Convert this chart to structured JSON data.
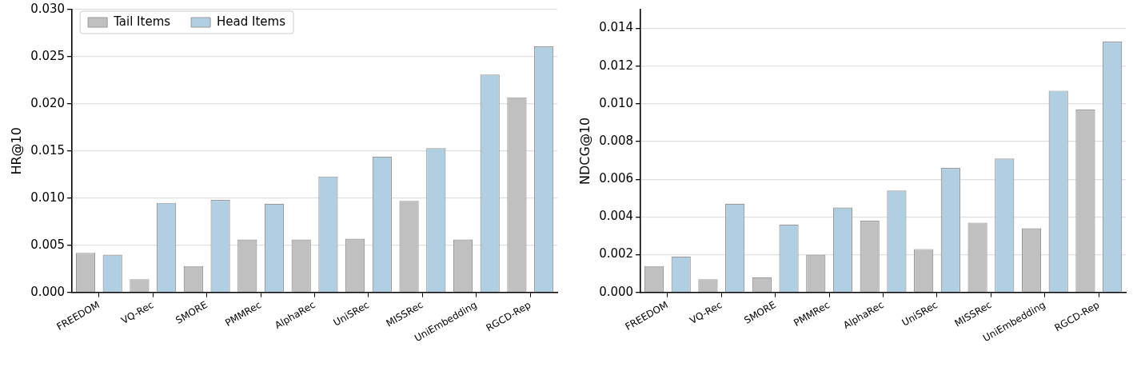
{
  "chart_data": [
    {
      "type": "bar",
      "ylabel": "HR@10",
      "categories": [
        "FREEDOM",
        "VQ-Rec",
        "SMORE",
        "PMMRec",
        "AlphaRec",
        "UniSRec",
        "MISSRec",
        "UniEmbedding",
        "RGCD-Rep"
      ],
      "series": [
        {
          "name": "Tail Items",
          "color": "#c0c0c0",
          "values": [
            0.0042,
            0.0014,
            0.0028,
            0.0056,
            0.0056,
            0.0057,
            0.0097,
            0.0056,
            0.0207
          ]
        },
        {
          "name": "Head Items",
          "color": "#b0cfe2",
          "values": [
            0.004,
            0.0095,
            0.0098,
            0.0094,
            0.0123,
            0.0144,
            0.0153,
            0.0231,
            0.0261
          ]
        }
      ],
      "ylim": [
        0,
        0.03
      ],
      "yticks": [
        {
          "value": 0,
          "label": "0.000"
        },
        {
          "value": 0.005,
          "label": "0.005"
        },
        {
          "value": 0.01,
          "label": "0.010"
        },
        {
          "value": 0.015,
          "label": "0.015"
        },
        {
          "value": 0.02,
          "label": "0.020"
        },
        {
          "value": 0.025,
          "label": "0.025"
        },
        {
          "value": 0.03,
          "label": "0.030"
        }
      ],
      "grid": "y",
      "legend": "top left"
    },
    {
      "type": "bar",
      "ylabel": "NDCG@10",
      "categories": [
        "FREEDOM",
        "VQ-Rec",
        "SMORE",
        "PMMRec",
        "AlphaRec",
        "UniSRec",
        "MISSRec",
        "UniEmbedding",
        "RGCD-Rep"
      ],
      "series": [
        {
          "color": "#c0c0c0",
          "values": [
            0.0014,
            0.0007,
            0.0008,
            0.002,
            0.0038,
            0.0023,
            0.0037,
            0.0034,
            0.0097
          ]
        },
        {
          "color": "#b0cfe2",
          "values": [
            0.0019,
            0.0047,
            0.0036,
            0.0045,
            0.0054,
            0.0066,
            0.0071,
            0.0107,
            0.0133
          ]
        }
      ],
      "ylim": [
        0,
        0.015
      ],
      "yticks": [
        {
          "value": 0,
          "label": "0.000"
        },
        {
          "value": 0.002,
          "label": "0.002"
        },
        {
          "value": 0.004,
          "label": "0.004"
        },
        {
          "value": 0.006,
          "label": "0.006"
        },
        {
          "value": 0.008,
          "label": "0.008"
        },
        {
          "value": 0.01,
          "label": "0.010"
        },
        {
          "value": 0.012,
          "label": "0.012"
        },
        {
          "value": 0.014,
          "label": "0.014"
        }
      ],
      "grid": "y"
    }
  ]
}
